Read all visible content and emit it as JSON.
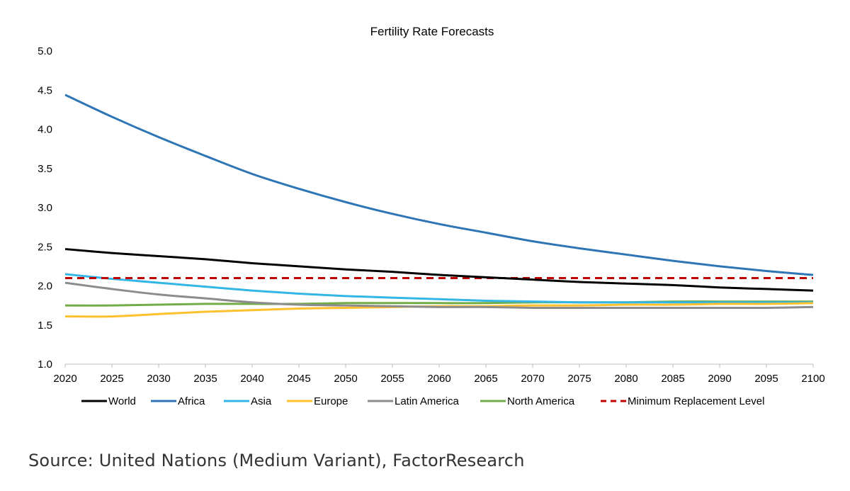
{
  "chart_data": {
    "type": "line",
    "title": "Fertility Rate Forecasts",
    "xlabel": "",
    "ylabel": "",
    "x": [
      2020,
      2025,
      2030,
      2035,
      2040,
      2045,
      2050,
      2055,
      2060,
      2065,
      2070,
      2075,
      2080,
      2085,
      2090,
      2095,
      2100
    ],
    "x_tick_labels": [
      "2020",
      "2025",
      "2030",
      "2035",
      "2040",
      "2045",
      "2050",
      "2055",
      "2060",
      "2065",
      "2070",
      "2075",
      "2080",
      "2085",
      "2090",
      "2095",
      "2100"
    ],
    "y_tick_labels": [
      "1.0",
      "1.5",
      "2.0",
      "2.5",
      "3.0",
      "3.5",
      "4.0",
      "4.5",
      "5.0"
    ],
    "ylim": [
      1.0,
      5.0
    ],
    "grid": false,
    "legend_position": "bottom",
    "series": [
      {
        "name": "World",
        "color": "#000000",
        "dashed": false,
        "values": [
          2.47,
          2.42,
          2.38,
          2.34,
          2.29,
          2.25,
          2.21,
          2.18,
          2.14,
          2.11,
          2.08,
          2.05,
          2.03,
          2.01,
          1.98,
          1.96,
          1.94
        ]
      },
      {
        "name": "Africa",
        "color": "#2E75B6",
        "dashed": false,
        "values": [
          4.44,
          4.16,
          3.9,
          3.66,
          3.43,
          3.24,
          3.07,
          2.92,
          2.79,
          2.68,
          2.57,
          2.48,
          2.4,
          2.32,
          2.25,
          2.19,
          2.14
        ]
      },
      {
        "name": "Asia",
        "color": "#33B5E5",
        "dashed": false,
        "values": [
          2.15,
          2.09,
          2.04,
          1.99,
          1.94,
          1.9,
          1.87,
          1.85,
          1.83,
          1.81,
          1.8,
          1.79,
          1.79,
          1.79,
          1.79,
          1.79,
          1.79
        ]
      },
      {
        "name": "Europe",
        "color": "#FFC02E",
        "dashed": false,
        "values": [
          1.61,
          1.61,
          1.64,
          1.67,
          1.69,
          1.71,
          1.72,
          1.73,
          1.74,
          1.74,
          1.75,
          1.75,
          1.76,
          1.76,
          1.77,
          1.77,
          1.78
        ]
      },
      {
        "name": "Latin America",
        "color": "#8C8C8C",
        "dashed": false,
        "values": [
          2.04,
          1.96,
          1.89,
          1.84,
          1.79,
          1.76,
          1.75,
          1.74,
          1.73,
          1.73,
          1.72,
          1.72,
          1.72,
          1.72,
          1.72,
          1.72,
          1.73
        ]
      },
      {
        "name": "North America",
        "color": "#70AD47",
        "dashed": false,
        "values": [
          1.75,
          1.75,
          1.76,
          1.77,
          1.77,
          1.77,
          1.78,
          1.78,
          1.78,
          1.78,
          1.79,
          1.79,
          1.79,
          1.8,
          1.8,
          1.8,
          1.8
        ]
      },
      {
        "name": "Minimum Replacement Level",
        "color": "#C00000",
        "dashed": true,
        "values": [
          2.1,
          2.1,
          2.1,
          2.1,
          2.1,
          2.1,
          2.1,
          2.1,
          2.1,
          2.1,
          2.1,
          2.1,
          2.1,
          2.1,
          2.1,
          2.1,
          2.1
        ]
      }
    ]
  },
  "source": "Source: United Nations (Medium Variant), FactorResearch"
}
